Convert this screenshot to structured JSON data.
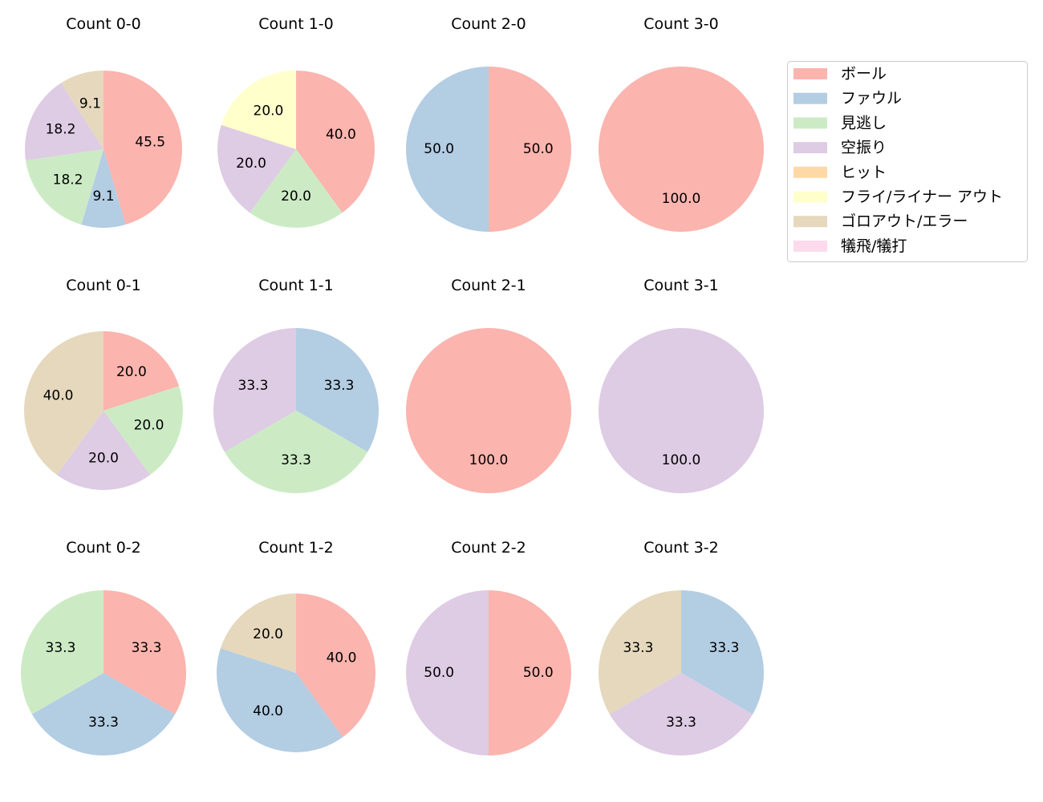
{
  "chart_data": [
    {
      "type": "pie",
      "title": "Count 0-0",
      "slices": [
        {
          "category": "ボール",
          "value": 45.5
        },
        {
          "category": "ファウル",
          "value": 9.1
        },
        {
          "category": "見逃し",
          "value": 18.2
        },
        {
          "category": "空振り",
          "value": 18.2
        },
        {
          "category": "ゴロアウト/エラー",
          "value": 9.1
        }
      ]
    },
    {
      "type": "pie",
      "title": "Count 1-0",
      "slices": [
        {
          "category": "ボール",
          "value": 40.0
        },
        {
          "category": "見逃し",
          "value": 20.0
        },
        {
          "category": "空振り",
          "value": 20.0
        },
        {
          "category": "フライ/ライナー アウト",
          "value": 20.0
        }
      ]
    },
    {
      "type": "pie",
      "title": "Count 2-0",
      "slices": [
        {
          "category": "ボール",
          "value": 50.0
        },
        {
          "category": "ファウル",
          "value": 50.0
        }
      ]
    },
    {
      "type": "pie",
      "title": "Count 3-0",
      "slices": [
        {
          "category": "ボール",
          "value": 100.0
        }
      ]
    },
    {
      "type": "pie",
      "title": "Count 0-1",
      "slices": [
        {
          "category": "ボール",
          "value": 20.0
        },
        {
          "category": "見逃し",
          "value": 20.0
        },
        {
          "category": "空振り",
          "value": 20.0
        },
        {
          "category": "ゴロアウト/エラー",
          "value": 40.0
        }
      ]
    },
    {
      "type": "pie",
      "title": "Count 1-1",
      "slices": [
        {
          "category": "ファウル",
          "value": 33.3
        },
        {
          "category": "見逃し",
          "value": 33.3
        },
        {
          "category": "空振り",
          "value": 33.3
        }
      ]
    },
    {
      "type": "pie",
      "title": "Count 2-1",
      "slices": [
        {
          "category": "ボール",
          "value": 100.0
        }
      ]
    },
    {
      "type": "pie",
      "title": "Count 3-1",
      "slices": [
        {
          "category": "空振り",
          "value": 100.0
        }
      ]
    },
    {
      "type": "pie",
      "title": "Count 0-2",
      "slices": [
        {
          "category": "ボール",
          "value": 33.3
        },
        {
          "category": "ファウル",
          "value": 33.3
        },
        {
          "category": "見逃し",
          "value": 33.3
        }
      ]
    },
    {
      "type": "pie",
      "title": "Count 1-2",
      "slices": [
        {
          "category": "ボール",
          "value": 40.0
        },
        {
          "category": "ファウル",
          "value": 40.0
        },
        {
          "category": "ゴロアウト/エラー",
          "value": 20.0
        }
      ]
    },
    {
      "type": "pie",
      "title": "Count 2-2",
      "slices": [
        {
          "category": "ボール",
          "value": 50.0
        },
        {
          "category": "空振り",
          "value": 50.0
        }
      ]
    },
    {
      "type": "pie",
      "title": "Count 3-2",
      "slices": [
        {
          "category": "ファウル",
          "value": 33.3
        },
        {
          "category": "空振り",
          "value": 33.3
        },
        {
          "category": "ゴロアウト/エラー",
          "value": 33.3
        }
      ]
    }
  ],
  "legend": {
    "placement": "upper-right",
    "items": [
      {
        "label": "ボール",
        "color": "#fbb4ae"
      },
      {
        "label": "ファウル",
        "color": "#b3cde3"
      },
      {
        "label": "見逃し",
        "color": "#ccebc5"
      },
      {
        "label": "空振り",
        "color": "#decbe4"
      },
      {
        "label": "ヒット",
        "color": "#fed9a6"
      },
      {
        "label": "フライ/ライナー アウト",
        "color": "#ffffcc"
      },
      {
        "label": "ゴロアウト/エラー",
        "color": "#e5d8bd"
      },
      {
        "label": "犠飛/犠打",
        "color": "#fddaec"
      }
    ]
  },
  "start_angle_deg": 90,
  "direction": "clockwise"
}
